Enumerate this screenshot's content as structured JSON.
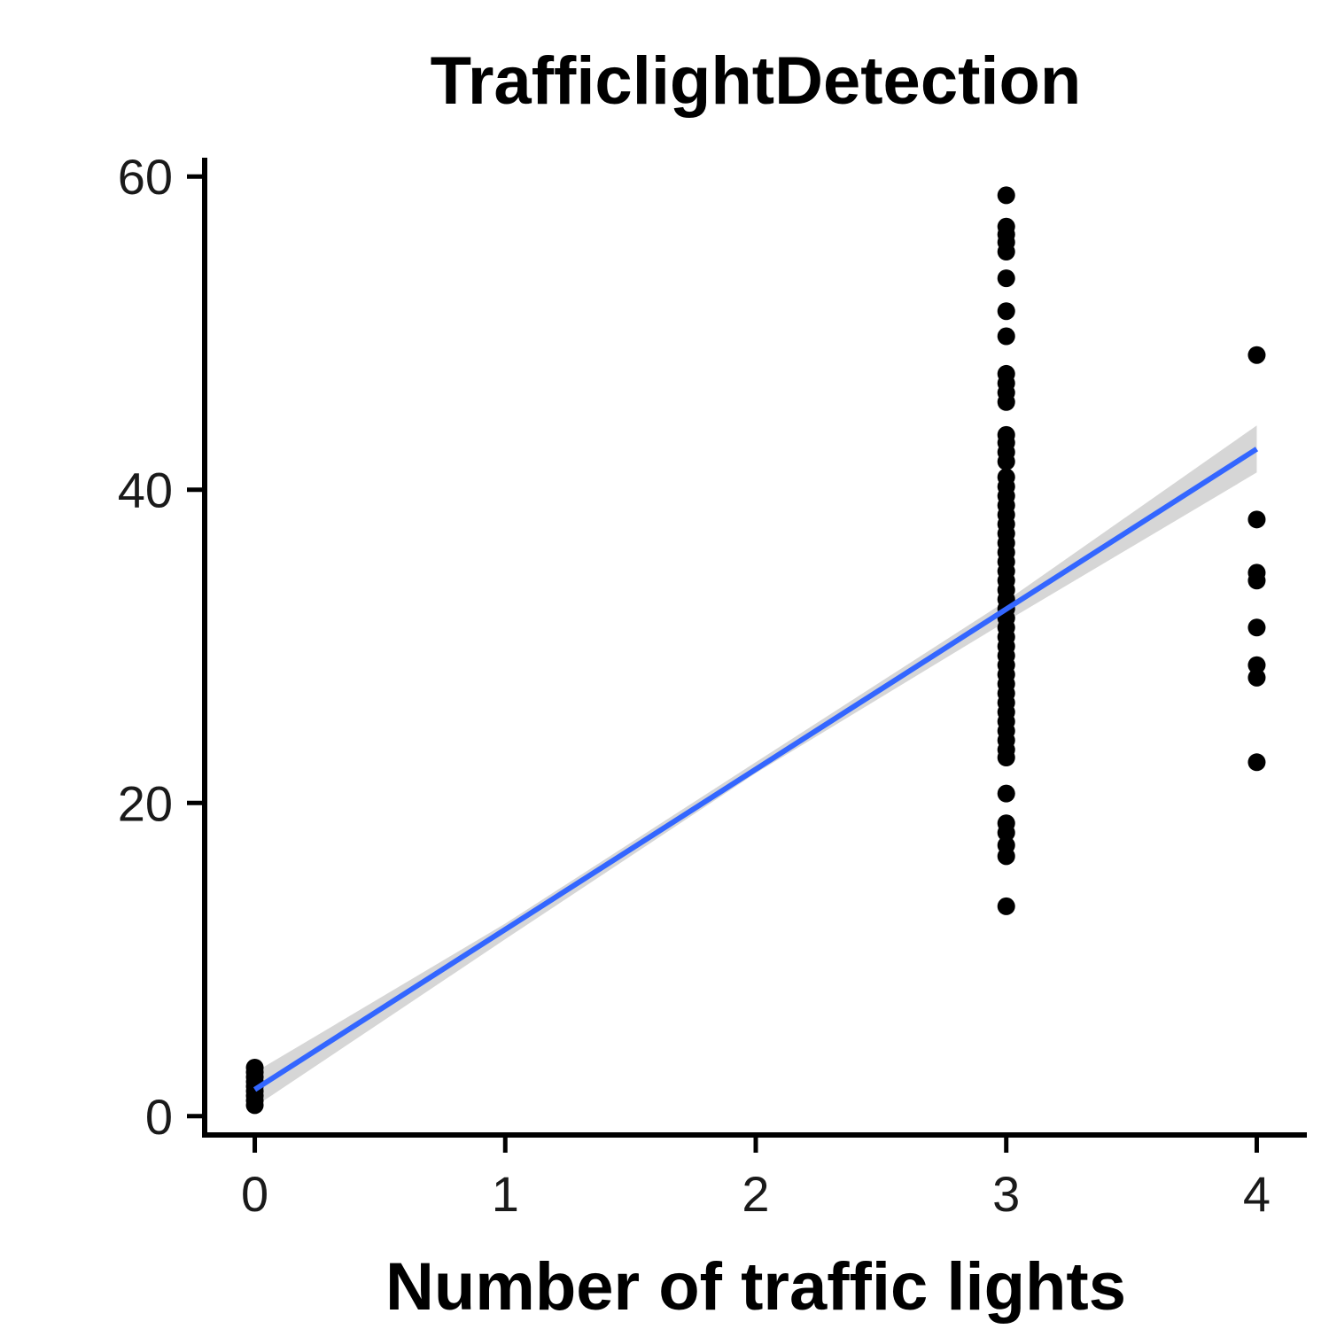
{
  "chart_data": {
    "type": "scatter",
    "title": "TrafficlightDetection",
    "xlabel": "Number of traffic lights",
    "ylabel": "",
    "xlim": [
      -0.2,
      4.2
    ],
    "ylim": [
      -1.2,
      61.2
    ],
    "x_ticks": [
      0,
      1,
      2,
      3,
      4
    ],
    "y_ticks": [
      0,
      20,
      40,
      60
    ],
    "x_tick_labels": [
      "0",
      "1",
      "2",
      "3",
      "4"
    ],
    "y_tick_labels": [
      "0",
      "20",
      "40",
      "60"
    ],
    "grid": false,
    "legend": "none",
    "point_color": "#000000",
    "fit_color": "#3366FF",
    "band_color": "#C8C8C8",
    "points": [
      {
        "x": 0,
        "y": 0.7
      },
      {
        "x": 0,
        "y": 1.0
      },
      {
        "x": 0,
        "y": 1.3
      },
      {
        "x": 0,
        "y": 1.6
      },
      {
        "x": 0,
        "y": 1.9
      },
      {
        "x": 0,
        "y": 2.2
      },
      {
        "x": 0,
        "y": 2.5
      },
      {
        "x": 0,
        "y": 2.8
      },
      {
        "x": 0,
        "y": 3.1
      },
      {
        "x": 3,
        "y": 13.4
      },
      {
        "x": 3,
        "y": 16.6
      },
      {
        "x": 3,
        "y": 17.3
      },
      {
        "x": 3,
        "y": 18.1
      },
      {
        "x": 3,
        "y": 18.7
      },
      {
        "x": 3,
        "y": 20.6
      },
      {
        "x": 3,
        "y": 22.9
      },
      {
        "x": 3,
        "y": 23.4
      },
      {
        "x": 3,
        "y": 24.0
      },
      {
        "x": 3,
        "y": 24.6
      },
      {
        "x": 3,
        "y": 25.2
      },
      {
        "x": 3,
        "y": 25.8
      },
      {
        "x": 3,
        "y": 26.4
      },
      {
        "x": 3,
        "y": 27.0
      },
      {
        "x": 3,
        "y": 27.6
      },
      {
        "x": 3,
        "y": 28.2
      },
      {
        "x": 3,
        "y": 28.8
      },
      {
        "x": 3,
        "y": 29.4
      },
      {
        "x": 3,
        "y": 30.0
      },
      {
        "x": 3,
        "y": 30.6
      },
      {
        "x": 3,
        "y": 31.2
      },
      {
        "x": 3,
        "y": 31.8
      },
      {
        "x": 3,
        "y": 32.4
      },
      {
        "x": 3,
        "y": 33.0
      },
      {
        "x": 3,
        "y": 33.6
      },
      {
        "x": 3,
        "y": 34.2
      },
      {
        "x": 3,
        "y": 34.8
      },
      {
        "x": 3,
        "y": 35.4
      },
      {
        "x": 3,
        "y": 36.0
      },
      {
        "x": 3,
        "y": 36.6
      },
      {
        "x": 3,
        "y": 37.2
      },
      {
        "x": 3,
        "y": 37.8
      },
      {
        "x": 3,
        "y": 38.4
      },
      {
        "x": 3,
        "y": 39.0
      },
      {
        "x": 3,
        "y": 39.6
      },
      {
        "x": 3,
        "y": 40.2
      },
      {
        "x": 3,
        "y": 40.8
      },
      {
        "x": 3,
        "y": 41.8
      },
      {
        "x": 3,
        "y": 42.4
      },
      {
        "x": 3,
        "y": 43.0
      },
      {
        "x": 3,
        "y": 43.5
      },
      {
        "x": 3,
        "y": 45.6
      },
      {
        "x": 3,
        "y": 46.2
      },
      {
        "x": 3,
        "y": 46.8
      },
      {
        "x": 3,
        "y": 47.4
      },
      {
        "x": 3,
        "y": 49.8
      },
      {
        "x": 3,
        "y": 51.4
      },
      {
        "x": 3,
        "y": 53.5
      },
      {
        "x": 3,
        "y": 55.2
      },
      {
        "x": 3,
        "y": 55.8
      },
      {
        "x": 3,
        "y": 56.3
      },
      {
        "x": 3,
        "y": 56.8
      },
      {
        "x": 3,
        "y": 58.8
      },
      {
        "x": 4,
        "y": 22.6
      },
      {
        "x": 4,
        "y": 28.0
      },
      {
        "x": 4,
        "y": 28.8
      },
      {
        "x": 4,
        "y": 31.2
      },
      {
        "x": 4,
        "y": 34.2
      },
      {
        "x": 4,
        "y": 34.7
      },
      {
        "x": 4,
        "y": 38.1
      },
      {
        "x": 4,
        "y": 48.6
      }
    ],
    "fit_line": {
      "x": [
        0,
        4
      ],
      "y": [
        1.7,
        42.6
      ]
    },
    "confidence_band": {
      "x": [
        0,
        1,
        2,
        3,
        4
      ],
      "lower": [
        0.6,
        11.3,
        21.9,
        31.6,
        41.1
      ],
      "upper": [
        2.8,
        12.3,
        22.6,
        32.9,
        44.1
      ]
    }
  }
}
